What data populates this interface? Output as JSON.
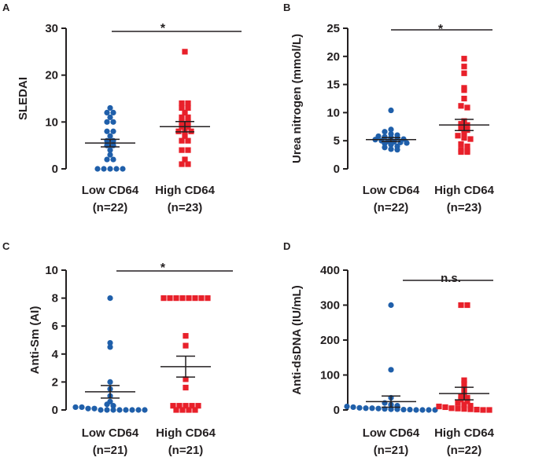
{
  "colors": {
    "low": "#1f5faa",
    "high": "#e8202a",
    "ink": "#231f20"
  },
  "chart_data": [
    {
      "panel": "A",
      "type": "scatter",
      "ylabel": "SLEDAI",
      "ylim": [
        0,
        30
      ],
      "yticks": [
        "0",
        "10",
        "20",
        "30"
      ],
      "significance": "*",
      "groups": [
        {
          "name": "Low CD64",
          "n_label": "(n=22)",
          "mean": 5.5,
          "sem": 0.8,
          "values": [
            13,
            12,
            12,
            11,
            10,
            10,
            8,
            8,
            7,
            6,
            6,
            5,
            5,
            4,
            3,
            2,
            2,
            0,
            0,
            0,
            0,
            0
          ]
        },
        {
          "name": "High CD64",
          "n_label": "(n=23)",
          "mean": 9.0,
          "sem": 1.1,
          "values": [
            25,
            14,
            14,
            13,
            13,
            12,
            11,
            11,
            10,
            10,
            9,
            9,
            8,
            8,
            8,
            7,
            6,
            6,
            4,
            4,
            2,
            1,
            1
          ]
        }
      ]
    },
    {
      "panel": "B",
      "type": "scatter",
      "ylabel": "Urea nitrogen (mmol/L)",
      "ylim": [
        0,
        25
      ],
      "yticks": [
        "0",
        "5",
        "10",
        "15",
        "20",
        "25"
      ],
      "significance": "*",
      "groups": [
        {
          "name": "Low CD64",
          "n_label": "(n=22)",
          "mean": 5.2,
          "sem": 0.35,
          "values": [
            10.4,
            7.0,
            6.6,
            6.2,
            6.0,
            5.8,
            5.7,
            5.6,
            5.5,
            5.3,
            5.2,
            5.0,
            4.9,
            4.8,
            4.7,
            4.6,
            4.5,
            4.3,
            4.0,
            3.8,
            3.5,
            3.4
          ]
        },
        {
          "name": "High CD64",
          "n_label": "(n=23)",
          "mean": 7.8,
          "sem": 1.0,
          "values": [
            19.6,
            18.2,
            17.0,
            14.4,
            14.0,
            12.5,
            11.2,
            10.9,
            8.5,
            8.0,
            7.8,
            7.2,
            6.9,
            6.5,
            5.9,
            5.5,
            5.3,
            4.4,
            4.0,
            3.4,
            3.2,
            3.0,
            3.0
          ]
        }
      ]
    },
    {
      "panel": "C",
      "type": "scatter",
      "ylabel": "Anti-Sm (AI)",
      "ylim": [
        0,
        10
      ],
      "yticks": [
        "0",
        "2",
        "4",
        "6",
        "8",
        "10"
      ],
      "significance": "*",
      "groups": [
        {
          "name": "Low CD64",
          "n_label": "(n=21)",
          "mean": 1.3,
          "sem": 0.45,
          "values": [
            8.0,
            4.8,
            4.5,
            2.0,
            1.5,
            1.0,
            0.6,
            0.4,
            0.3,
            0.2,
            0.2,
            0.1,
            0.1,
            0.0,
            0.0,
            0.0,
            0.0,
            0.0,
            0.0,
            0.0,
            0.0
          ]
        },
        {
          "name": "High CD64",
          "n_label": "(n=21)",
          "mean": 3.1,
          "sem": 0.75,
          "values": [
            8.0,
            8.0,
            8.0,
            8.0,
            8.0,
            8.0,
            8.0,
            8.0,
            5.3,
            4.6,
            2.2,
            1.6,
            0.3,
            0.3,
            0.3,
            0.3,
            0.3,
            0.0,
            0.0,
            0.0,
            0.0
          ]
        }
      ]
    },
    {
      "panel": "D",
      "type": "scatter",
      "ylabel": "Anti-dsDNA (IU/mL)",
      "ylim": [
        0,
        400
      ],
      "yticks": [
        "0",
        "100",
        "200",
        "300",
        "400"
      ],
      "significance": "n.s.",
      "groups": [
        {
          "name": "Low CD64",
          "n_label": "(n=21)",
          "mean": 24,
          "sem": 16,
          "values": [
            300,
            115,
            35,
            20,
            15,
            12,
            10,
            8,
            6,
            5,
            5,
            4,
            3,
            2,
            2,
            1,
            1,
            0,
            0,
            0,
            0
          ]
        },
        {
          "name": "High CD64",
          "n_label": "(n=22)",
          "mean": 47,
          "sem": 18,
          "values": [
            300,
            300,
            85,
            75,
            60,
            50,
            40,
            35,
            30,
            25,
            20,
            15,
            12,
            10,
            8,
            5,
            4,
            3,
            2,
            1,
            0,
            0
          ]
        }
      ]
    }
  ]
}
